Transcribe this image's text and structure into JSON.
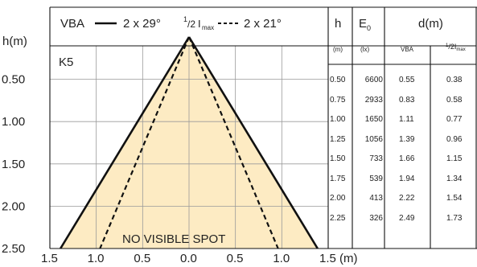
{
  "chart_data": {
    "type": "diagram",
    "header": {
      "vba_label": "VBA",
      "vba_angle": "2 x 29°",
      "half_label_num": "1",
      "half_label_den": "/2",
      "half_label_rest": "I",
      "half_label_sub": "max",
      "half_angle": "2 x 21°"
    },
    "model": "K5",
    "y_axis_label": "h(m)",
    "y_ticks": [
      "0.50",
      "1.00",
      "1.50",
      "2.00",
      "2.50"
    ],
    "x_ticks": [
      "1.5",
      "1.0",
      "0.5",
      "0.0",
      "0.5",
      "1.0",
      "1.5 (m)"
    ],
    "annotation": "NO VISIBLE SPOT",
    "cone": {
      "vba_half_angle_deg": 29,
      "half_imax_half_angle_deg": 21,
      "h_max": 2.5
    },
    "table": {
      "columns": [
        "h",
        "E0",
        "d(m)"
      ],
      "col_e0_main": "E",
      "col_e0_sub": "0",
      "subheaders": {
        "h": "(m)",
        "E0": "(lx)",
        "vba": "VBA",
        "half_num": "1",
        "half_den": "/2",
        "half_rest": "I",
        "half_sub": "max"
      },
      "rows": [
        {
          "h": "0.50",
          "E0": "6600",
          "vba": "0.55",
          "half": "0.38"
        },
        {
          "h": "0.75",
          "E0": "2933",
          "vba": "0.83",
          "half": "0.58"
        },
        {
          "h": "1.00",
          "E0": "1650",
          "vba": "1.11",
          "half": "0.77"
        },
        {
          "h": "1.25",
          "E0": "1056",
          "vba": "1.39",
          "half": "0.96"
        },
        {
          "h": "1.50",
          "E0": "733",
          "vba": "1.66",
          "half": "1.15"
        },
        {
          "h": "1.75",
          "E0": "539",
          "vba": "1.94",
          "half": "1.34"
        },
        {
          "h": "2.00",
          "E0": "413",
          "vba": "2.22",
          "half": "1.54"
        },
        {
          "h": "2.25",
          "E0": "326",
          "vba": "2.49",
          "half": "1.73"
        }
      ]
    },
    "colors": {
      "fill": "#fdebc3",
      "line": "#111111",
      "grid": "#9a9a9a"
    }
  }
}
